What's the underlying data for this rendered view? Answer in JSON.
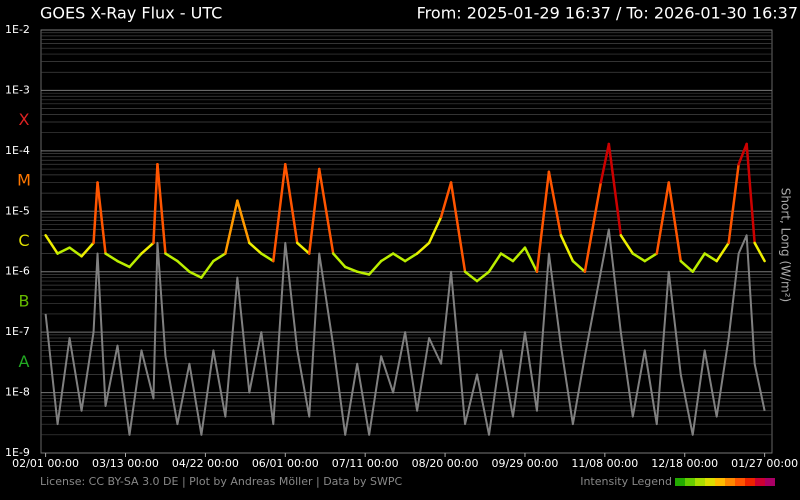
{
  "chart_data": {
    "type": "line",
    "title": "GOES X-Ray Flux - UTC",
    "subtitle": "From: 2025-01-29 16:37  /  To: 2026-01-30 16:37",
    "y_axis_label": "Short, Long (W/m²)",
    "footer": "License: CC BY-SA 3.0 DE | Plot by Andreas Möller | Data by SWPC",
    "legend_label": "Intensity Legend",
    "legend_colors": [
      "#22aa00",
      "#66cc00",
      "#aadd00",
      "#dddd00",
      "#ffbb00",
      "#ff8800",
      "#ff5500",
      "#ee2200",
      "#cc0033",
      "#aa0066"
    ],
    "log_y": true,
    "grid": true,
    "xlim": [
      "2025-01-29 16:37",
      "2026-01-30 16:37"
    ],
    "xticks": [
      {
        "value": "2025-02-01 00:00",
        "label": "02/01 00:00"
      },
      {
        "value": "2025-03-13 00:00",
        "label": "03/13 00:00"
      },
      {
        "value": "2025-04-22 00:00",
        "label": "04/22 00:00"
      },
      {
        "value": "2025-06-01 00:00",
        "label": "06/01 00:00"
      },
      {
        "value": "2025-07-11 00:00",
        "label": "07/11 00:00"
      },
      {
        "value": "2025-08-20 00:00",
        "label": "08/20 00:00"
      },
      {
        "value": "2025-09-29 00:00",
        "label": "09/29 00:00"
      },
      {
        "value": "2025-11-08 00:00",
        "label": "11/08 00:00"
      },
      {
        "value": "2025-12-18 00:00",
        "label": "12/18 00:00"
      },
      {
        "value": "2026-01-27 00:00",
        "label": "01/27 00:00"
      }
    ],
    "ylim": [
      1e-09,
      0.01
    ],
    "yticks": [
      {
        "value": 1e-09,
        "label": "1E-9"
      },
      {
        "value": 1e-08,
        "label": "1E-8"
      },
      {
        "value": 1e-07,
        "label": "1E-7"
      },
      {
        "value": 1e-06,
        "label": "1E-6"
      },
      {
        "value": 1e-05,
        "label": "1E-5"
      },
      {
        "value": 0.0001,
        "label": "1E-4"
      },
      {
        "value": 0.001,
        "label": "1E-3"
      },
      {
        "value": 0.01,
        "label": "1E-2"
      }
    ],
    "classes": [
      {
        "label": "A",
        "min": 1e-08,
        "color": "#22aa22"
      },
      {
        "label": "B",
        "min": 1e-07,
        "color": "#66bb00"
      },
      {
        "label": "C",
        "min": 1e-06,
        "color": "#dddd00"
      },
      {
        "label": "M",
        "min": 1e-05,
        "color": "#ff7700"
      },
      {
        "label": "X",
        "min": 0.0001,
        "color": "#dd2222"
      }
    ],
    "intensity_scale": {
      "bounds": [
        1e-06,
        3e-06,
        1e-05,
        3e-05,
        0.0001
      ],
      "colors": [
        "#66cc00",
        "#bbee00",
        "#eeee00",
        "#ff9900",
        "#ff5500",
        "#cc0000"
      ]
    },
    "x": [
      "2025-02-01",
      "2025-02-07",
      "2025-02-13",
      "2025-02-19",
      "2025-02-25",
      "2025-02-27",
      "2025-03-03",
      "2025-03-09",
      "2025-03-15",
      "2025-03-21",
      "2025-03-27",
      "2025-03-29",
      "2025-04-02",
      "2025-04-08",
      "2025-04-14",
      "2025-04-20",
      "2025-04-26",
      "2025-05-02",
      "2025-05-08",
      "2025-05-14",
      "2025-05-20",
      "2025-05-26",
      "2025-06-01",
      "2025-06-07",
      "2025-06-13",
      "2025-06-18",
      "2025-06-25",
      "2025-07-01",
      "2025-07-07",
      "2025-07-13",
      "2025-07-19",
      "2025-07-25",
      "2025-07-31",
      "2025-08-06",
      "2025-08-12",
      "2025-08-18",
      "2025-08-23",
      "2025-08-30",
      "2025-09-05",
      "2025-09-11",
      "2025-09-17",
      "2025-09-23",
      "2025-09-29",
      "2025-10-05",
      "2025-10-11",
      "2025-10-17",
      "2025-10-23",
      "2025-10-29",
      "2025-11-06",
      "2025-11-10",
      "2025-11-16",
      "2025-11-22",
      "2025-11-28",
      "2025-12-04",
      "2025-12-10",
      "2025-12-16",
      "2025-12-22",
      "2025-12-28",
      "2026-01-03",
      "2026-01-09",
      "2026-01-14",
      "2026-01-18",
      "2026-01-22",
      "2026-01-27"
    ],
    "series": [
      {
        "color": "#808080",
        "values": [
          2e-07,
          3e-09,
          8e-08,
          5e-09,
          1e-07,
          2e-06,
          6e-09,
          6e-08,
          2e-09,
          5e-08,
          8e-09,
          3e-06,
          4e-08,
          3e-09,
          3e-08,
          2e-09,
          5e-08,
          4e-09,
          8e-07,
          1e-08,
          1e-07,
          3e-09,
          3e-06,
          5e-08,
          4e-09,
          2e-06,
          6e-08,
          2e-09,
          3e-08,
          2e-09,
          4e-08,
          1e-08,
          1e-07,
          5e-09,
          8e-08,
          3e-08,
          1e-06,
          3e-09,
          2e-08,
          2e-09,
          5e-08,
          4e-09,
          1e-07,
          5e-09,
          2e-06,
          6e-08,
          3e-09,
          4e-08,
          1e-06,
          5e-06,
          1e-07,
          4e-09,
          5e-08,
          3e-09,
          1e-06,
          2e-08,
          2e-09,
          5e-08,
          4e-09,
          8e-08,
          2e-06,
          4e-06,
          3e-08,
          5e-09
        ]
      },
      {
        "values": [
          4e-06,
          2e-06,
          2.5e-06,
          1.8e-06,
          3e-06,
          3e-05,
          2e-06,
          1.5e-06,
          1.2e-06,
          2e-06,
          3e-06,
          6e-05,
          2e-06,
          1.5e-06,
          1e-06,
          8e-07,
          1.5e-06,
          2e-06,
          1.5e-05,
          3e-06,
          2e-06,
          1.5e-06,
          6e-05,
          3e-06,
          2e-06,
          5e-05,
          2e-06,
          1.2e-06,
          1e-06,
          9e-07,
          1.5e-06,
          2e-06,
          1.5e-06,
          2e-06,
          3e-06,
          8e-06,
          3e-05,
          1e-06,
          7e-07,
          1e-06,
          2e-06,
          1.5e-06,
          2.5e-06,
          1e-06,
          4.5e-05,
          4e-06,
          1.5e-06,
          1e-06,
          3e-05,
          0.00013,
          4e-06,
          2e-06,
          1.5e-06,
          2e-06,
          3e-05,
          1.5e-06,
          1e-06,
          2e-06,
          1.5e-06,
          3e-06,
          6e-05,
          0.00013,
          3e-06,
          1.5e-06
        ]
      }
    ]
  }
}
